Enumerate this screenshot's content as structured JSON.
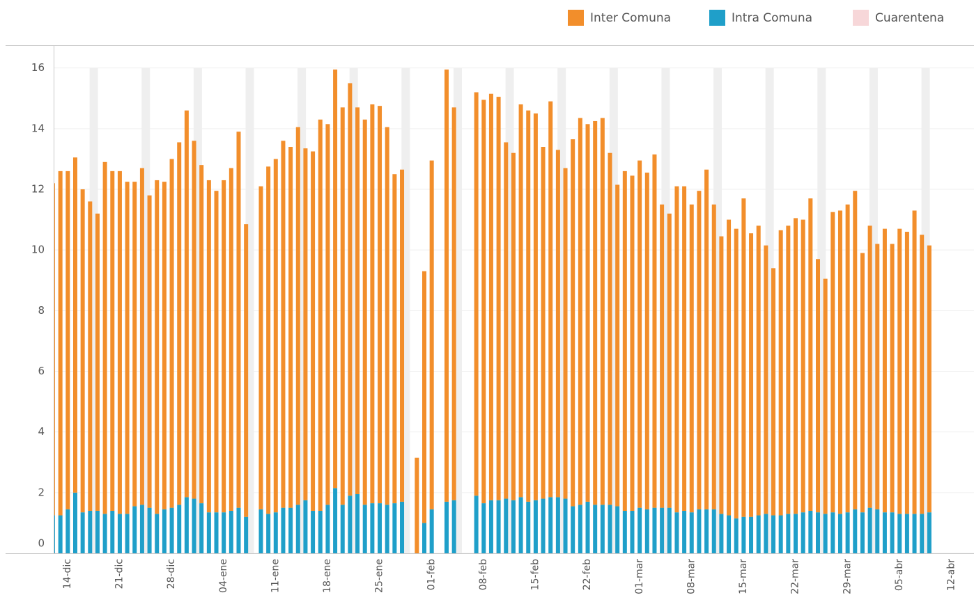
{
  "chart_data": {
    "type": "bar",
    "stacked": true,
    "categories": [
      null,
      "14-dic",
      null,
      null,
      null,
      null,
      null,
      null,
      "21-dic",
      null,
      null,
      null,
      null,
      null,
      null,
      "28-dic",
      null,
      null,
      null,
      null,
      null,
      null,
      "04-ene",
      null,
      null,
      null,
      null,
      null,
      null,
      "11-ene",
      null,
      null,
      null,
      null,
      null,
      null,
      "18-ene",
      null,
      null,
      null,
      null,
      null,
      null,
      "25-ene",
      null,
      null,
      null,
      null,
      null,
      null,
      "01-feb",
      null,
      null,
      null,
      null,
      null,
      null,
      "08-feb",
      null,
      null,
      null,
      null,
      null,
      null,
      "15-feb",
      null,
      null,
      null,
      null,
      null,
      null,
      "22-feb",
      null,
      null,
      null,
      null,
      null,
      null,
      "01-mar",
      null,
      null,
      null,
      null,
      null,
      null,
      "08-mar",
      null,
      null,
      null,
      null,
      null,
      null,
      "15-mar",
      null,
      null,
      null,
      null,
      null,
      null,
      "22-mar",
      null,
      null,
      null,
      null,
      null,
      null,
      "29-mar",
      null,
      null,
      null,
      null,
      null,
      null,
      "05-abr",
      null,
      null,
      null,
      null,
      null,
      null,
      "12-abr"
    ],
    "series": [
      {
        "name": "Inter Comuna",
        "color": "#f28e2b",
        "values": [
          10.95,
          11.35,
          11.15,
          11.05,
          10.65,
          10.2,
          9.8,
          11.6,
          11.2,
          11.3,
          10.95,
          10.7,
          11.1,
          10.3,
          11.0,
          10.8,
          11.5,
          11.95,
          12.75,
          11.8,
          11.15,
          10.95,
          10.6,
          10.95,
          11.3,
          12.4,
          9.65,
          null,
          10.65,
          11.45,
          11.65,
          12.1,
          11.9,
          12.45,
          11.6,
          11.85,
          12.9,
          12.55,
          13.8,
          13.1,
          13.6,
          12.75,
          12.7,
          13.15,
          13.1,
          12.45,
          10.85,
          10.95,
          null,
          3.15,
          8.3,
          11.5,
          null,
          14.25,
          12.95,
          null,
          null,
          13.3,
          13.3,
          13.4,
          13.3,
          11.75,
          11.45,
          12.95,
          12.9,
          12.75,
          11.6,
          13.05,
          11.45,
          10.9,
          12.1,
          12.75,
          12.45,
          12.65,
          12.75,
          11.6,
          10.6,
          11.2,
          11.05,
          11.45,
          11.1,
          11.65,
          10.0,
          9.7,
          10.75,
          10.7,
          10.15,
          10.5,
          11.2,
          10.05,
          9.15,
          9.75,
          9.55,
          10.5,
          9.35,
          9.55,
          8.85,
          8.15,
          9.4,
          9.5,
          9.75,
          9.65,
          10.3,
          8.35,
          7.75,
          9.9,
          10.0,
          10.15,
          10.5,
          8.55,
          9.3,
          8.75,
          9.35,
          8.85,
          9.4,
          9.3,
          10.0,
          9.2,
          8.8,
          null,
          null
        ]
      },
      {
        "name": "Intra Comuna",
        "color": "#1f9fc9",
        "values": [
          1.25,
          1.25,
          1.45,
          2.0,
          1.35,
          1.4,
          1.4,
          1.3,
          1.4,
          1.3,
          1.3,
          1.55,
          1.6,
          1.5,
          1.3,
          1.45,
          1.5,
          1.6,
          1.85,
          1.8,
          1.65,
          1.35,
          1.35,
          1.35,
          1.4,
          1.5,
          1.2,
          null,
          1.45,
          1.3,
          1.35,
          1.5,
          1.5,
          1.6,
          1.75,
          1.4,
          1.4,
          1.6,
          2.15,
          1.6,
          1.9,
          1.95,
          1.6,
          1.65,
          1.65,
          1.6,
          1.65,
          1.7,
          null,
          null,
          1.0,
          1.45,
          null,
          1.7,
          1.75,
          null,
          null,
          1.9,
          1.65,
          1.75,
          1.75,
          1.8,
          1.75,
          1.85,
          1.7,
          1.75,
          1.8,
          1.85,
          1.85,
          1.8,
          1.55,
          1.6,
          1.7,
          1.6,
          1.6,
          1.6,
          1.55,
          1.4,
          1.4,
          1.5,
          1.45,
          1.5,
          1.5,
          1.5,
          1.35,
          1.4,
          1.35,
          1.45,
          1.45,
          1.45,
          1.3,
          1.25,
          1.15,
          1.2,
          1.2,
          1.25,
          1.3,
          1.25,
          1.25,
          1.3,
          1.3,
          1.35,
          1.4,
          1.35,
          1.3,
          1.35,
          1.3,
          1.35,
          1.45,
          1.35,
          1.5,
          1.45,
          1.35,
          1.35,
          1.3,
          1.3,
          1.3,
          1.3,
          1.35,
          null,
          null
        ]
      },
      {
        "name": "Cuarentena",
        "color": "#f7d7d9",
        "values": [
          null,
          null,
          null,
          null,
          null,
          null,
          null,
          null,
          null,
          null,
          null,
          null,
          null,
          null,
          null,
          null,
          null,
          null,
          null,
          null,
          null,
          null,
          null,
          null,
          null,
          null,
          null,
          null,
          null,
          null,
          null,
          null,
          null,
          null,
          null,
          null,
          null,
          null,
          null,
          null,
          null,
          null,
          null,
          null,
          null,
          null,
          null,
          null,
          null,
          null,
          null,
          null,
          null,
          null,
          null,
          null,
          null,
          null,
          null,
          null,
          null,
          null,
          null,
          null,
          null,
          null,
          null,
          null,
          null,
          null,
          null,
          null,
          null,
          null,
          null,
          null,
          null,
          null,
          null,
          null,
          null,
          null,
          null,
          null,
          null,
          null,
          null,
          null,
          null,
          null,
          null,
          null,
          null,
          null,
          null,
          null,
          null,
          null,
          null,
          null,
          null,
          null,
          null,
          null,
          null,
          null,
          null,
          null,
          null,
          null,
          null,
          null,
          null,
          null,
          null,
          null,
          null,
          null,
          null,
          null,
          null
        ]
      }
    ],
    "ylim": [
      0,
      16.75
    ],
    "yticks": [
      0,
      2,
      4,
      6,
      8,
      10,
      12,
      14,
      16
    ],
    "grid": true
  }
}
